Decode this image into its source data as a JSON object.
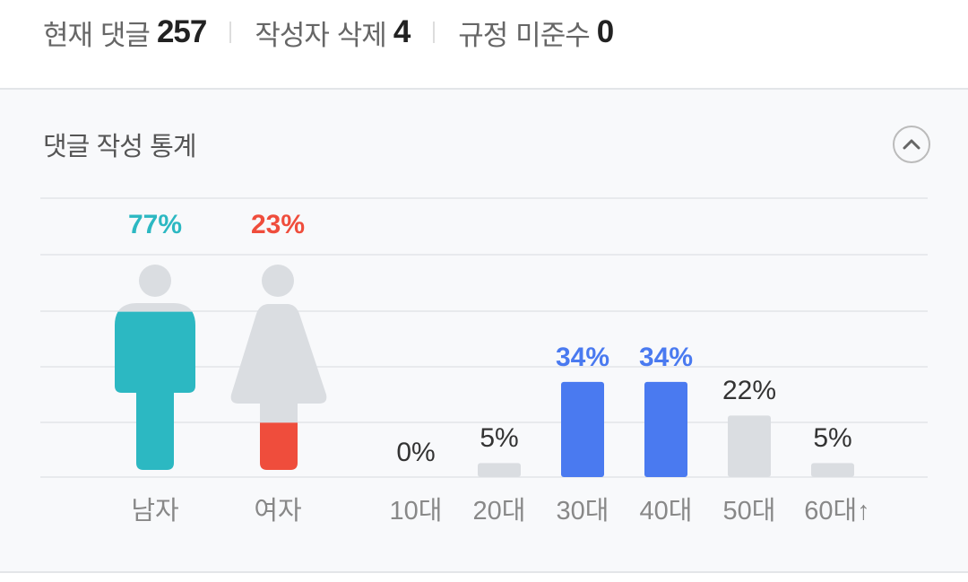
{
  "summary": {
    "items": [
      {
        "label": "현재 댓글",
        "value": "257"
      },
      {
        "label": "작성자 삭제",
        "value": "4"
      },
      {
        "label": "규정 미준수",
        "value": "0"
      }
    ]
  },
  "stats": {
    "title": "댓글 작성 통계",
    "toggle_icon": "chevron-up-icon"
  },
  "colors": {
    "male": "#2cb8c2",
    "female": "#ef4d3c",
    "age_highlight": "#4a7af0",
    "inactive": "#dadde1"
  },
  "chart_data": [
    {
      "type": "bar",
      "title": "",
      "categories": [
        "남자",
        "여자"
      ],
      "values": [
        77,
        23
      ],
      "labels": [
        "77%",
        "23%"
      ],
      "unit": "%"
    },
    {
      "type": "bar",
      "title": "",
      "categories": [
        "10대",
        "20대",
        "30대",
        "40대",
        "50대",
        "60대↑"
      ],
      "values": [
        0,
        5,
        34,
        34,
        22,
        5
      ],
      "labels": [
        "0%",
        "5%",
        "34%",
        "34%",
        "22%",
        "5%"
      ],
      "highlight": [
        false,
        false,
        true,
        true,
        false,
        false
      ],
      "unit": "%",
      "grid": true
    }
  ]
}
